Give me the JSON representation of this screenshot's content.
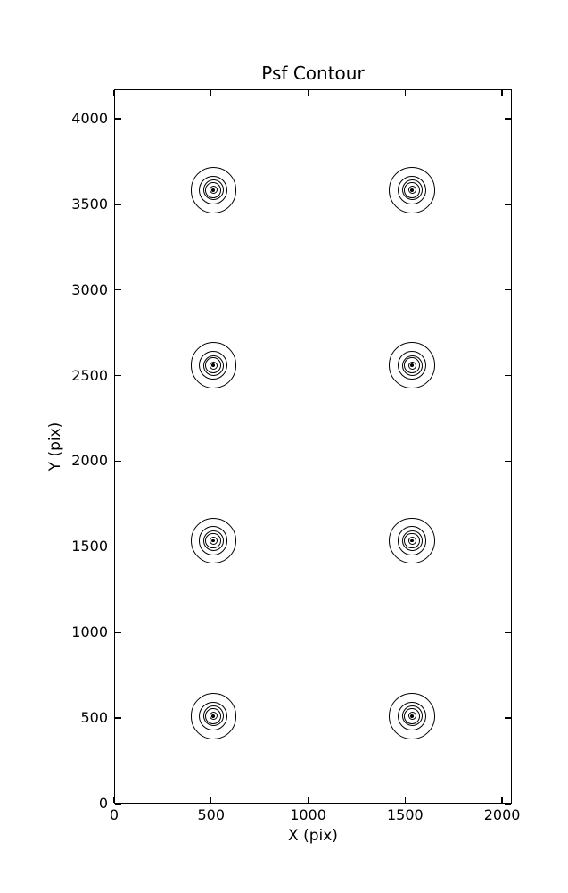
{
  "chart_data": {
    "type": "contour",
    "title": "Psf Contour",
    "xlabel": "X (pix)",
    "ylabel": "Y (pix)",
    "xlim": [
      0,
      2050
    ],
    "ylim": [
      0,
      4172
    ],
    "xticks": [
      0,
      500,
      1000,
      1500,
      2000
    ],
    "yticks": [
      0,
      500,
      1000,
      1500,
      2000,
      2500,
      3000,
      3500,
      4000
    ],
    "grid": false,
    "legend": false,
    "tick_direction": "in",
    "ticks_all_sides": true,
    "line_color": "#000000",
    "background_color": "#ffffff",
    "psf_centers": [
      {
        "x": 512,
        "y": 512
      },
      {
        "x": 1536,
        "y": 512
      },
      {
        "x": 512,
        "y": 1536
      },
      {
        "x": 1536,
        "y": 1536
      },
      {
        "x": 512,
        "y": 2560
      },
      {
        "x": 1536,
        "y": 2560
      },
      {
        "x": 512,
        "y": 3584
      },
      {
        "x": 1536,
        "y": 3584
      }
    ],
    "ring_radii_data_units": [
      119,
      74,
      53,
      41,
      21
    ],
    "center_dot_radius_data_units": 9
  }
}
